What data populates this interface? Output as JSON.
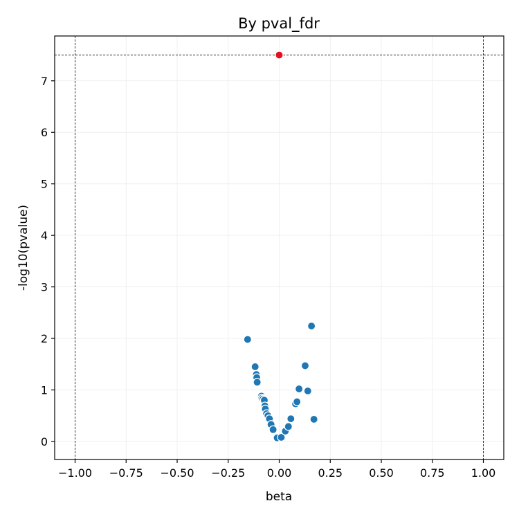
{
  "chart_data": {
    "type": "scatter",
    "title": "By pval_fdr",
    "xlabel": "beta",
    "ylabel": "-log10(pvalue)",
    "xlim": [
      -1.1,
      1.1
    ],
    "ylim": [
      -0.35,
      7.87
    ],
    "xticks": [
      -1.0,
      -0.75,
      -0.5,
      -0.25,
      0.0,
      0.25,
      0.5,
      0.75,
      1.0
    ],
    "xtick_labels": [
      "−1.00",
      "−0.75",
      "−0.50",
      "−0.25",
      "0.00",
      "0.25",
      "0.50",
      "0.75",
      "1.00"
    ],
    "yticks": [
      0,
      1,
      2,
      3,
      4,
      5,
      6,
      7
    ],
    "ytick_labels": [
      "0",
      "1",
      "2",
      "3",
      "4",
      "5",
      "6",
      "7"
    ],
    "grid": true,
    "thresholds": {
      "vertical": [
        -1.0,
        1.0
      ],
      "horizontal": [
        7.5
      ]
    },
    "series": [
      {
        "color": "#1f77b4",
        "x": [
          -0.155,
          -0.118,
          -0.112,
          -0.11,
          -0.108,
          -0.087,
          -0.085,
          -0.08,
          -0.073,
          -0.07,
          -0.068,
          -0.062,
          -0.055,
          -0.048,
          -0.04,
          -0.03,
          -0.01,
          0.01,
          0.03,
          0.045,
          0.057,
          0.08,
          0.087,
          0.097,
          0.127,
          0.14,
          0.158,
          0.17
        ],
        "y": [
          1.98,
          1.45,
          1.3,
          1.24,
          1.15,
          0.88,
          0.84,
          0.82,
          0.8,
          0.69,
          0.63,
          0.54,
          0.5,
          0.44,
          0.33,
          0.23,
          0.07,
          0.08,
          0.2,
          0.29,
          0.44,
          0.73,
          0.77,
          1.02,
          1.47,
          0.98,
          2.24,
          0.43
        ]
      },
      {
        "color": "#e3111f",
        "x": [
          0.0
        ],
        "y": [
          7.5
        ]
      }
    ]
  }
}
